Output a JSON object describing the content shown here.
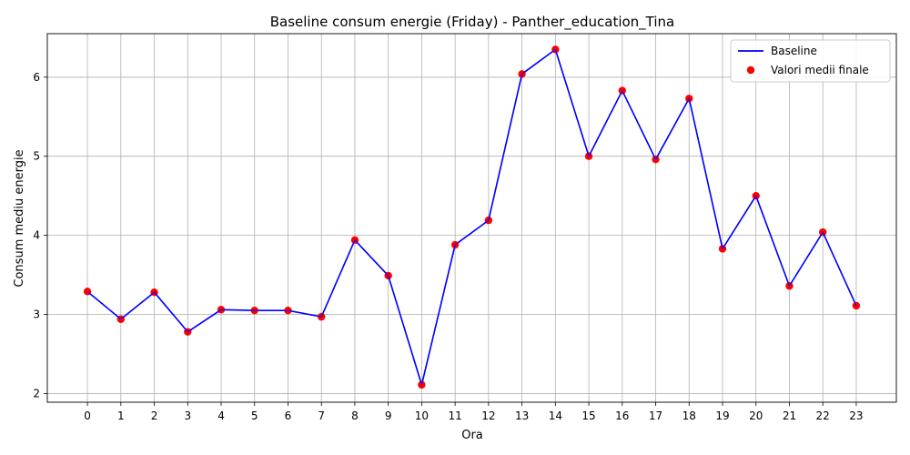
{
  "chart_data": {
    "type": "line",
    "title": "Baseline consum energie (Friday) - Panther_education_Tina",
    "xlabel": "Ora",
    "ylabel": "Consum mediu energie",
    "x": [
      0,
      1,
      2,
      3,
      4,
      5,
      6,
      7,
      8,
      9,
      10,
      11,
      12,
      13,
      14,
      15,
      16,
      17,
      18,
      19,
      20,
      21,
      22,
      23
    ],
    "x_tick_labels": [
      "0",
      "1",
      "2",
      "3",
      "4",
      "5",
      "6",
      "7",
      "8",
      "9",
      "10",
      "11",
      "12",
      "13",
      "14",
      "15",
      "16",
      "17",
      "18",
      "19",
      "20",
      "21",
      "22",
      "23"
    ],
    "y_ticks": [
      2,
      3,
      4,
      5,
      6
    ],
    "y_tick_labels": [
      "2",
      "3",
      "4",
      "5",
      "6"
    ],
    "xlim": [
      -1.2,
      24.2
    ],
    "ylim": [
      1.89,
      6.55
    ],
    "grid": true,
    "legend_position": "top-right",
    "series": [
      {
        "name": "Baseline",
        "kind": "line",
        "color": "#0000ff",
        "values": [
          3.29,
          2.94,
          3.28,
          2.78,
          3.06,
          3.05,
          3.05,
          2.97,
          3.94,
          3.49,
          2.11,
          3.88,
          4.19,
          6.04,
          6.35,
          5.0,
          5.83,
          4.96,
          5.73,
          3.83,
          4.5,
          3.36,
          4.04,
          3.11
        ]
      },
      {
        "name": "Valori medii finale",
        "kind": "scatter",
        "color": "#ff0000",
        "values": [
          3.29,
          2.94,
          3.28,
          2.78,
          3.06,
          3.05,
          3.05,
          2.97,
          3.94,
          3.49,
          2.11,
          3.88,
          4.19,
          6.04,
          6.35,
          5.0,
          5.83,
          4.96,
          5.73,
          3.83,
          4.5,
          3.36,
          4.04,
          3.11
        ]
      }
    ]
  }
}
